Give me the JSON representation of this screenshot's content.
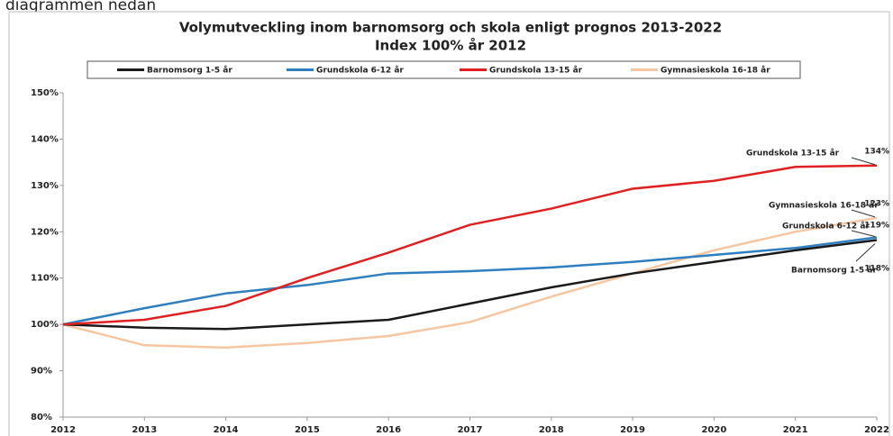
{
  "caption": "diagrammen nedan",
  "chart_data": {
    "type": "line",
    "title": "Volymutveckling inom barnomsorg och skola enligt prognos 2013-2022",
    "subtitle": "Index 100% år 2012",
    "x": [
      2012,
      2013,
      2014,
      2015,
      2016,
      2017,
      2018,
      2019,
      2020,
      2021,
      2022
    ],
    "xlim": [
      2012,
      2022
    ],
    "xticks": [
      2012,
      2013,
      2014,
      2015,
      2016,
      2017,
      2018,
      2019,
      2020,
      2021,
      2022
    ],
    "ylim": [
      80,
      150
    ],
    "yticks": [
      {
        "value": 80,
        "label": "80%"
      },
      {
        "value": 90,
        "label": "90%"
      },
      {
        "value": 100,
        "label": "100%"
      },
      {
        "value": 110,
        "label": "110%"
      },
      {
        "value": 120,
        "label": "120%"
      },
      {
        "value": 130,
        "label": "130%"
      },
      {
        "value": 140,
        "label": "140%"
      },
      {
        "value": 150,
        "label": "150%"
      }
    ],
    "grid": false,
    "legend": "top",
    "series": [
      {
        "name": "Barnomsorg 1-5 år",
        "color": "#1a1a1a",
        "values": [
          100,
          99.3,
          99,
          100,
          101,
          104.5,
          108,
          111,
          113.5,
          116,
          118.2
        ],
        "value_labels": [
          null,
          null,
          null,
          null,
          null,
          null,
          null,
          null,
          null,
          null,
          "118%"
        ]
      },
      {
        "name": "Grundskola 6-12 år",
        "color": "#2e7fc0",
        "values": [
          100,
          103.5,
          106.7,
          108.5,
          111,
          111.5,
          112.3,
          113.5,
          115,
          116.5,
          118.8
        ],
        "value_labels": [
          null,
          null,
          null,
          null,
          null,
          null,
          null,
          null,
          null,
          null,
          "119%"
        ]
      },
      {
        "name": "Grundskola 13-15 år",
        "color": "#e02020",
        "values": [
          100,
          101,
          104,
          110,
          115.5,
          121.5,
          125,
          129.3,
          131,
          134,
          134.3
        ],
        "value_labels": [
          null,
          null,
          null,
          null,
          null,
          null,
          null,
          null,
          null,
          null,
          "134%"
        ]
      },
      {
        "name": "Gymnasieskola 16-18 år",
        "color": "#f5c6a0",
        "values": [
          100,
          95.5,
          95,
          96,
          97.5,
          100.5,
          106,
          111,
          116,
          120,
          123
        ],
        "value_labels": [
          null,
          null,
          null,
          null,
          null,
          null,
          null,
          null,
          null,
          null,
          "123%"
        ]
      }
    ]
  }
}
